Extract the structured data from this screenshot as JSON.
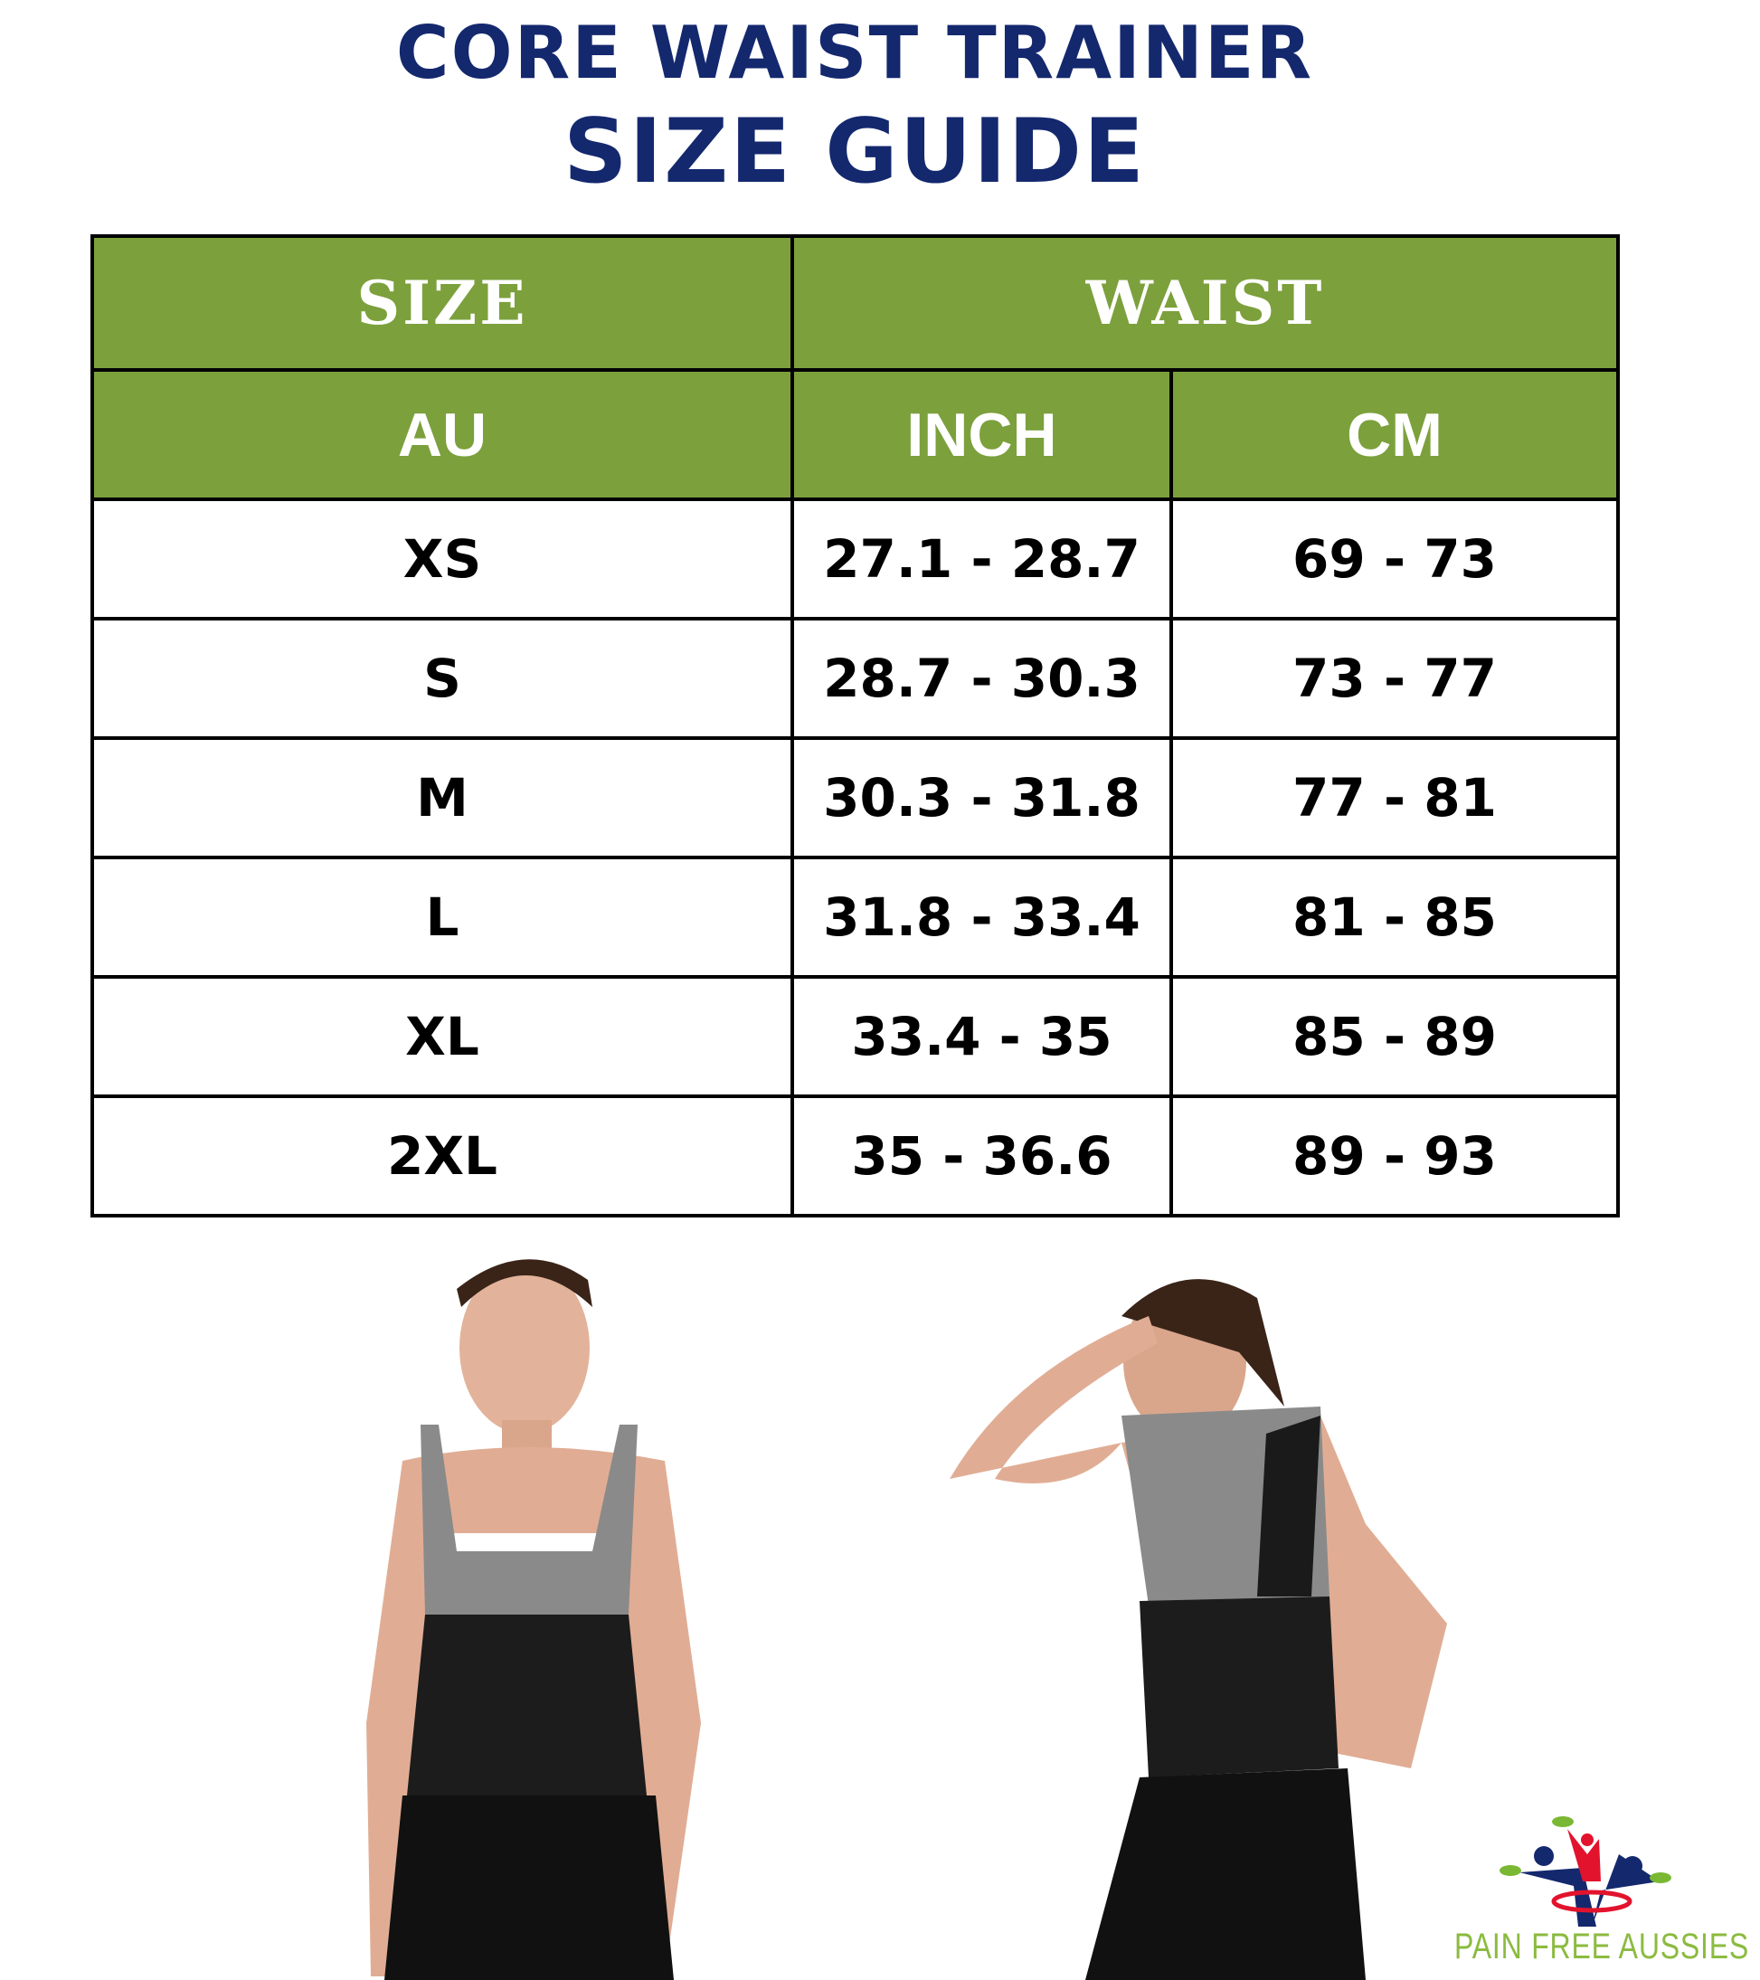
{
  "title": {
    "line1": "CORE WAIST TRAINER",
    "line2": "SIZE GUIDE",
    "color": "#14286e"
  },
  "table": {
    "header_color": "#7ca03c",
    "group_headers": [
      "SIZE",
      "WAIST"
    ],
    "columns": [
      "AU",
      "INCH",
      "CM"
    ],
    "rows": [
      [
        "XS",
        "27.1 - 28.7",
        "69 - 73"
      ],
      [
        "S",
        "28.7 - 30.3",
        "73 - 77"
      ],
      [
        "M",
        "30.3 - 31.8",
        "77 - 81"
      ],
      [
        "L",
        "31.8 - 33.4",
        "81 - 85"
      ],
      [
        "XL",
        "33.4 - 35",
        "85 - 89"
      ],
      [
        "2XL",
        "35 - 36.6",
        "89 - 93"
      ]
    ]
  },
  "logo": {
    "text": "PAIN FREE AUSSIES"
  }
}
